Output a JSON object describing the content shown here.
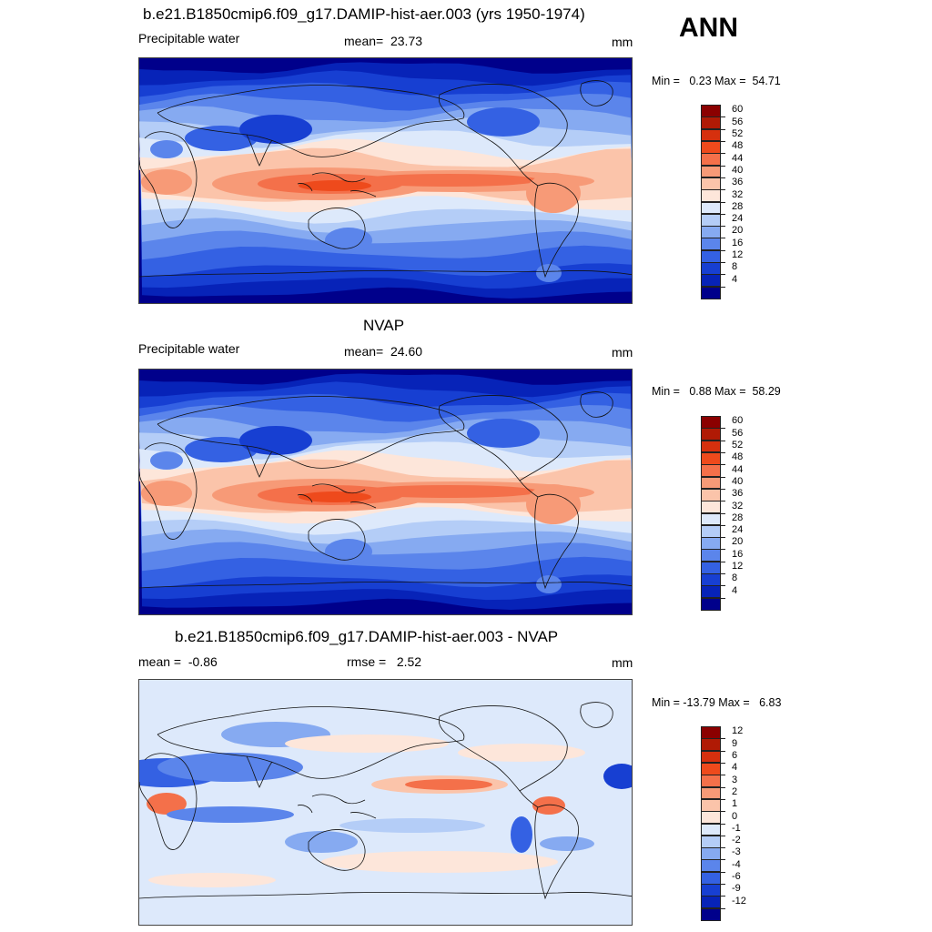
{
  "season": "ANN",
  "panels": [
    {
      "title": "b.e21.B1850cmip6.f09_g17.DAMIP-hist-aer.003 (yrs 1950-1974)",
      "left_label": "Precipitable water",
      "center_label": "mean=  23.73",
      "unit": "mm",
      "minmax": "Min =   0.23 Max =  54.71",
      "levels": [
        "60",
        "56",
        "52",
        "48",
        "44",
        "40",
        "36",
        "32",
        "28",
        "24",
        "20",
        "16",
        "12",
        "8",
        "4"
      ],
      "colors": [
        "#8b0000",
        "#b01a05",
        "#d6300e",
        "#ee4a1c",
        "#f4704a",
        "#f79a77",
        "#fbc4aa",
        "#fde6da",
        "#dde9fb",
        "#b4cdf7",
        "#86aaf1",
        "#5b85eb",
        "#3461e3",
        "#173fd2",
        "#0723b8",
        "#00008b"
      ],
      "map_kind": "field"
    },
    {
      "title": "NVAP",
      "left_label": "Precipitable water",
      "center_label": "mean=  24.60",
      "unit": "mm",
      "minmax": "Min =   0.88 Max =  58.29",
      "levels": [
        "60",
        "56",
        "52",
        "48",
        "44",
        "40",
        "36",
        "32",
        "28",
        "24",
        "20",
        "16",
        "12",
        "8",
        "4"
      ],
      "colors": [
        "#8b0000",
        "#b01a05",
        "#d6300e",
        "#ee4a1c",
        "#f4704a",
        "#f79a77",
        "#fbc4aa",
        "#fde6da",
        "#dde9fb",
        "#b4cdf7",
        "#86aaf1",
        "#5b85eb",
        "#3461e3",
        "#173fd2",
        "#0723b8",
        "#00008b"
      ],
      "map_kind": "field"
    },
    {
      "title": "b.e21.B1850cmip6.f09_g17.DAMIP-hist-aer.003 - NVAP",
      "left_label": "mean =  -0.86",
      "center_label": "rmse =   2.52",
      "unit": "mm",
      "minmax": "Min = -13.79 Max =   6.83",
      "levels": [
        "12",
        "9",
        "6",
        "4",
        "3",
        "2",
        "1",
        "0",
        "-1",
        "-2",
        "-3",
        "-4",
        "-6",
        "-9",
        "-12"
      ],
      "colors": [
        "#8b0000",
        "#b01a05",
        "#d6300e",
        "#ee4a1c",
        "#f4704a",
        "#f79a77",
        "#fbc4aa",
        "#fde6da",
        "#dde9fb",
        "#b4cdf7",
        "#86aaf1",
        "#5b85eb",
        "#3461e3",
        "#173fd2",
        "#0723b8",
        "#00008b"
      ],
      "map_kind": "diff"
    }
  ]
}
